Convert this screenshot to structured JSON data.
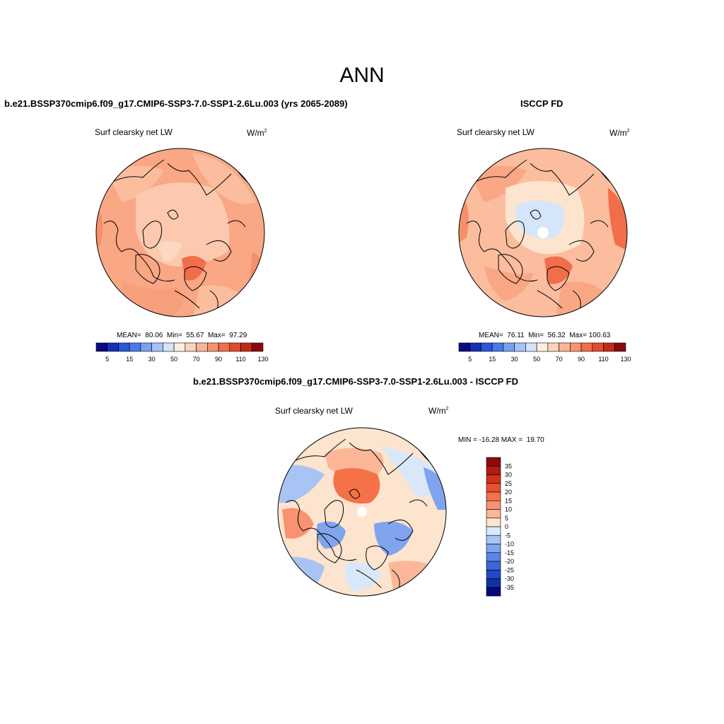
{
  "title": "ANN",
  "panels": [
    {
      "title": "b.e21.BSSP370cmip6.f09_g17.CMIP6-SSP3-7.0-SSP1-2.6Lu.003 (yrs 2065-2089)",
      "variable": "Surf clearsky net LW",
      "units_base": "W/m",
      "units_exp": "2",
      "stats": "MEAN=  80.06  Min=  55.67  Max=  97.29"
    },
    {
      "title": "ISCCP FD",
      "variable": "Surf clearsky net LW",
      "units_base": "W/m",
      "units_exp": "2",
      "stats": "MEAN=  76.11  Min=  56.32  Max= 100.63"
    },
    {
      "title": "b.e21.BSSP370cmip6.f09_g17.CMIP6-SSP3-7.0-SSP1-2.6Lu.003 - ISCCP FD",
      "variable": "Surf clearsky net LW",
      "units_base": "W/m",
      "units_exp": "2",
      "stats": "MIN = -16.28 MAX =  19.70"
    }
  ],
  "colorbar_main": {
    "colors": [
      "#0a0a82",
      "#1430b4",
      "#2a56d8",
      "#4a7ae8",
      "#7aa0f0",
      "#a6c2f6",
      "#d2e4fa",
      "#fdeede",
      "#fcd2bc",
      "#f9b497",
      "#f79470",
      "#f26e4a",
      "#e24a2c",
      "#c22a16",
      "#8c0a0a"
    ],
    "labels": [
      "5",
      "15",
      "30",
      "50",
      "70",
      "90",
      "110",
      "130"
    ]
  },
  "colorbar_diff": {
    "colors": [
      "#8c0a0a",
      "#b01a12",
      "#d2301a",
      "#ea5030",
      "#f57248",
      "#f89272",
      "#fbb798",
      "#fde4ce",
      "#d8e8fa",
      "#a8c4f4",
      "#80a4ee",
      "#5a86e6",
      "#3a66da",
      "#2248c8",
      "#1030a8",
      "#06087a"
    ],
    "labels": [
      "35",
      "30",
      "25",
      "20",
      "15",
      "10",
      "5",
      "0",
      "-5",
      "-10",
      "-15",
      "-20",
      "-25",
      "-30",
      "-35"
    ]
  }
}
